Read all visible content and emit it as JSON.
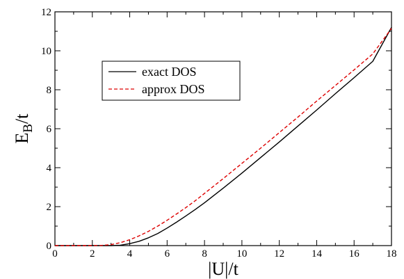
{
  "chart_data": {
    "type": "line",
    "title": "",
    "xlabel": "|U|/t",
    "ylabel": {
      "main": "E",
      "sub": "B",
      "suffix": "/t"
    },
    "xlim": [
      0,
      18
    ],
    "ylim": [
      0,
      12
    ],
    "xticks": [
      0,
      2,
      4,
      6,
      8,
      10,
      12,
      14,
      16,
      18
    ],
    "yticks": [
      0,
      2,
      4,
      6,
      8,
      10,
      12
    ],
    "grid": false,
    "legend_position": "upper-left",
    "series": [
      {
        "name": "exact DOS",
        "color": "#000000",
        "dash": "solid",
        "x": [
          0,
          1,
          2,
          3,
          3.5,
          4,
          4.5,
          5,
          5.5,
          6,
          6.5,
          7,
          7.5,
          8,
          9,
          10,
          11,
          12,
          13,
          14,
          15,
          16,
          17,
          18
        ],
        "y": [
          0,
          0,
          0,
          0,
          0.02,
          0.1,
          0.22,
          0.4,
          0.62,
          0.9,
          1.2,
          1.52,
          1.85,
          2.2,
          2.95,
          3.72,
          4.52,
          5.32,
          6.14,
          6.96,
          7.8,
          8.62,
          9.46,
          11.2
        ]
      },
      {
        "name": "approx DOS",
        "color": "#dd0000",
        "dash": "dashed",
        "x": [
          0,
          1,
          2,
          2.5,
          3,
          3.5,
          4,
          4.5,
          5,
          5.5,
          6,
          6.5,
          7,
          7.5,
          8,
          9,
          10,
          11,
          12,
          13,
          14,
          15,
          16,
          17,
          18
        ],
        "y": [
          0,
          0,
          0,
          0.01,
          0.05,
          0.15,
          0.3,
          0.5,
          0.73,
          1.0,
          1.3,
          1.62,
          1.95,
          2.3,
          2.68,
          3.44,
          4.22,
          5.0,
          5.8,
          6.6,
          7.42,
          8.22,
          9.02,
          9.84,
          11.15
        ]
      }
    ]
  }
}
